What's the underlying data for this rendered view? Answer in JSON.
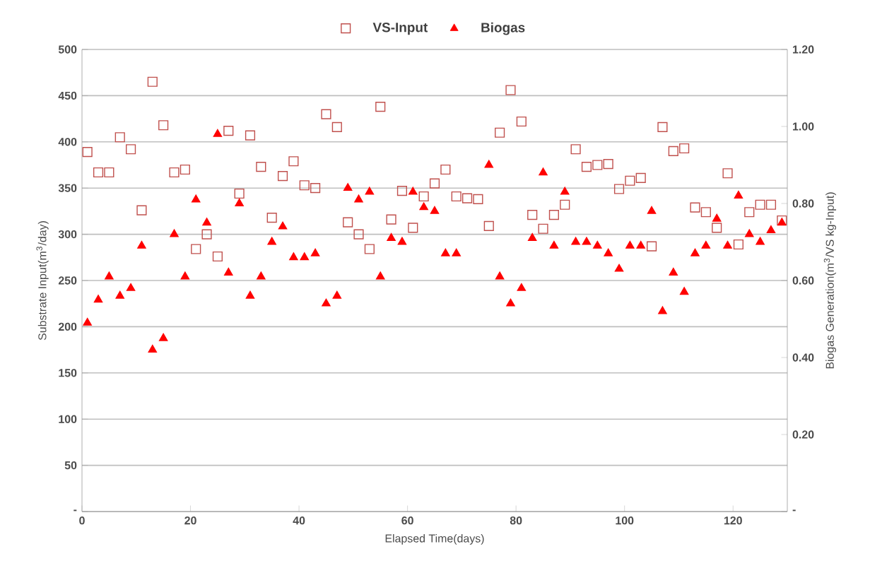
{
  "chart_data": {
    "type": "scatter",
    "xlabel": "Elapsed Time(days)",
    "ylabel": "Substrate Input(m$^{3}$/day)",
    "y2label": "Biogas Generation(m$^{3}$/VS kg-Input)",
    "x": [
      1,
      3,
      5,
      7,
      9,
      11,
      13,
      15,
      17,
      19,
      21,
      23,
      25,
      27,
      29,
      31,
      33,
      35,
      37,
      39,
      41,
      43,
      45,
      47,
      49,
      51,
      53,
      55,
      57,
      59,
      61,
      63,
      65,
      67,
      69,
      71,
      73,
      75,
      77,
      79,
      81,
      83,
      85,
      87,
      89,
      91,
      93,
      95,
      97,
      99,
      101,
      103,
      105,
      107,
      109,
      111,
      113,
      115,
      117,
      119,
      121,
      123,
      125,
      127,
      129
    ],
    "series": [
      {
        "name": "VS-Input",
        "color": "#c0504d",
        "marker": "square",
        "values": [
          389,
          367,
          367,
          405,
          392,
          326,
          465,
          418,
          367,
          370,
          284,
          300,
          276,
          412,
          344,
          407,
          373,
          318,
          363,
          379,
          353,
          350,
          430,
          416,
          313,
          300,
          284,
          438,
          316,
          347,
          307,
          341,
          355,
          370,
          341,
          339,
          338,
          309,
          410,
          456,
          422,
          321,
          306,
          321,
          332,
          392,
          373,
          375,
          376,
          349,
          358,
          361,
          287,
          416,
          390,
          393,
          329,
          324,
          307,
          366,
          289,
          324,
          332,
          332,
          315
        ]
      },
      {
        "name": "Biogas",
        "color": "#ff0000",
        "marker": "triangle",
        "axis": "y2",
        "values": [
          0.49,
          0.55,
          0.61,
          0.56,
          0.58,
          0.69,
          0.42,
          0.45,
          0.72,
          0.61,
          0.81,
          0.75,
          0.98,
          0.62,
          0.8,
          0.56,
          0.61,
          0.7,
          0.74,
          0.66,
          0.66,
          0.67,
          0.54,
          0.56,
          0.84,
          0.81,
          0.83,
          0.61,
          0.71,
          0.7,
          0.83,
          0.79,
          0.78,
          0.67,
          0.67,
          null,
          null,
          0.9,
          0.61,
          0.54,
          0.58,
          0.71,
          0.88,
          0.69,
          0.83,
          0.7,
          0.7,
          0.69,
          0.67,
          0.63,
          0.69,
          0.69,
          0.78,
          0.52,
          0.62,
          0.57,
          0.67,
          0.69,
          0.76,
          0.69,
          0.82,
          0.72,
          0.7,
          0.73,
          0.75
        ]
      }
    ],
    "xlim": [
      0,
      130
    ],
    "xticks": [
      0,
      20,
      40,
      60,
      80,
      100,
      120
    ],
    "ylim": [
      0,
      500
    ],
    "yticks": [
      {
        "value": 0,
        "label": "-"
      },
      50,
      100,
      150,
      200,
      250,
      300,
      350,
      400,
      450,
      500
    ],
    "y2lim": [
      0,
      1.2
    ],
    "y2ticks": [
      {
        "value": 0,
        "label": "-"
      },
      {
        "value": 0.2,
        "label": "0.20"
      },
      {
        "value": 0.4,
        "label": "0.40"
      },
      {
        "value": 0.6,
        "label": "0.60"
      },
      {
        "value": 0.8,
        "label": "0.80"
      },
      {
        "value": 1.0,
        "label": "1.00"
      },
      {
        "value": 1.2,
        "label": "1.20"
      }
    ],
    "grid": "y",
    "legend": "top"
  }
}
